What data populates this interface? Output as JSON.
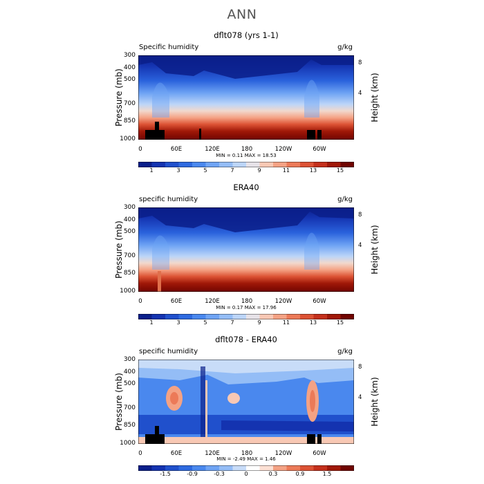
{
  "page": {
    "season": "ANN"
  },
  "panels": [
    {
      "title": "dflt078 (yrs 1-1)",
      "var_label": "Specific humidity",
      "units": "g/kg",
      "ylabel": "Pressure (mb)",
      "rlabel": "Height (km)",
      "minmax": "MIN =    0.11   MAX =   18.53",
      "cb_labels": [
        "1",
        "3",
        "5",
        "7",
        "9",
        "11",
        "13",
        "15"
      ]
    },
    {
      "title": "ERA40",
      "var_label": "specific humidity",
      "units": "g/kg",
      "ylabel": "Pressure (mb)",
      "rlabel": "Height (km)",
      "minmax": "MIN =    0.17   MAX =   17.96",
      "cb_labels": [
        "1",
        "3",
        "5",
        "7",
        "9",
        "11",
        "13",
        "15"
      ]
    },
    {
      "title": "dflt078 - ERA40",
      "var_label": "specific humidity",
      "units": "g/kg",
      "ylabel": "Pressure (mb)",
      "rlabel": "Height (km)",
      "minmax": "MIN =   -2.49   MAX =    1.46",
      "cb_labels": [
        "-1.5",
        "-0.9",
        "-0.3",
        "0",
        "0.3",
        "0.9",
        "1.5"
      ]
    }
  ],
  "axes": {
    "pressure_ticks": [
      "300",
      "400",
      "500",
      "700",
      "850",
      "1000"
    ],
    "lon_ticks": [
      "0",
      "60E",
      "120E",
      "180",
      "120W",
      "60W"
    ],
    "height_ticks": [
      "8",
      "4"
    ]
  },
  "colors": {
    "cb_mean": [
      "#0a1f8a",
      "#1433b0",
      "#2050cc",
      "#2e6ae0",
      "#4a88ee",
      "#6fa4f4",
      "#94bdf6",
      "#bcd5f8",
      "#e6e2e8",
      "#f8c8b4",
      "#f4a284",
      "#ec7a58",
      "#dc5234",
      "#c4301c",
      "#a01808",
      "#700400"
    ],
    "cb_diff": [
      "#0a1f8a",
      "#1433b0",
      "#2050cc",
      "#2e6ae0",
      "#4a88ee",
      "#6fa4f4",
      "#94bdf6",
      "#c8dcf8",
      "#ffffff",
      "#fce0d4",
      "#f4a284",
      "#ec7a58",
      "#dc5234",
      "#c4301c",
      "#a01808",
      "#700400"
    ]
  },
  "chart_data": [
    {
      "type": "heatmap",
      "title": "dflt078 (yrs 1-1)",
      "xlabel": "",
      "ylabel": "Pressure (mb)",
      "x_ticks": [
        "0",
        "60E",
        "120E",
        "180",
        "120W",
        "60W"
      ],
      "y_ticks": [
        300,
        400,
        500,
        700,
        850,
        1000
      ],
      "levels": [
        1,
        3,
        5,
        7,
        9,
        11,
        13,
        15
      ],
      "units": "g/kg",
      "min": 0.11,
      "max": 18.53,
      "colorscale": "blue-white-red"
    },
    {
      "type": "heatmap",
      "title": "ERA40",
      "xlabel": "",
      "ylabel": "Pressure (mb)",
      "x_ticks": [
        "0",
        "60E",
        "120E",
        "180",
        "120W",
        "60W"
      ],
      "y_ticks": [
        300,
        400,
        500,
        700,
        850,
        1000
      ],
      "levels": [
        1,
        3,
        5,
        7,
        9,
        11,
        13,
        15
      ],
      "units": "g/kg",
      "min": 0.17,
      "max": 17.96,
      "colorscale": "blue-white-red"
    },
    {
      "type": "heatmap",
      "title": "dflt078 - ERA40",
      "xlabel": "",
      "ylabel": "Pressure (mb)",
      "x_ticks": [
        "0",
        "60E",
        "120E",
        "180",
        "120W",
        "60W"
      ],
      "y_ticks": [
        300,
        400,
        500,
        700,
        850,
        1000
      ],
      "levels": [
        -1.5,
        -0.9,
        -0.3,
        0,
        0.3,
        0.9,
        1.5
      ],
      "units": "g/kg",
      "min": -2.49,
      "max": 1.46,
      "colorscale": "blue-white-red"
    }
  ]
}
